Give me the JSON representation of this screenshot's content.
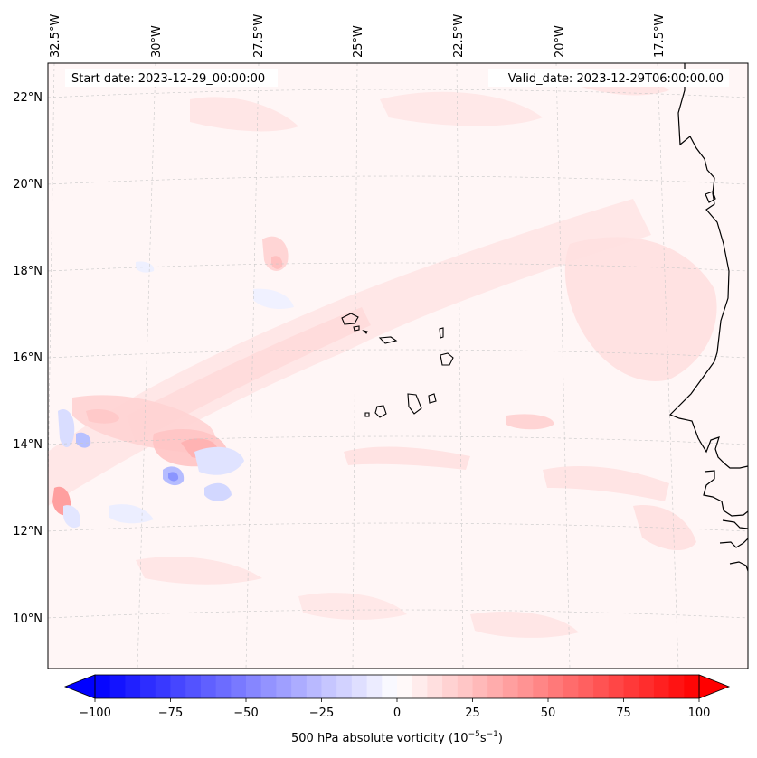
{
  "map": {
    "start_label": "Start date: 2023-12-29_00:00:00",
    "valid_label": "Valid_date: 2023-12-29T06:00:00.00",
    "lon_labels": [
      "32.5°W",
      "30°W",
      "27.5°W",
      "25°W",
      "22.5°W",
      "20°W",
      "17.5°W"
    ],
    "lat_labels": [
      "22°N",
      "20°N",
      "18°N",
      "16°N",
      "14°N",
      "12°N",
      "10°N"
    ],
    "land_color": "#fff4f4",
    "coastline_color": "#000000",
    "gridline_color": "#c8c8c8"
  },
  "colorbar": {
    "label_prefix": "500 hPa absolute vorticity (10",
    "label_exp1": "−5",
    "label_mid": "s",
    "label_exp2": "−1",
    "label_suffix": ")",
    "ticks": [
      "−100",
      "−75",
      "−50",
      "−25",
      "0",
      "25",
      "50",
      "75",
      "100"
    ],
    "min": -100,
    "max": 100,
    "step": 5,
    "extend": "both",
    "colors": {
      "negative": "#0000ff",
      "neutral": "#ffffff",
      "positive": "#ff0000"
    }
  }
}
